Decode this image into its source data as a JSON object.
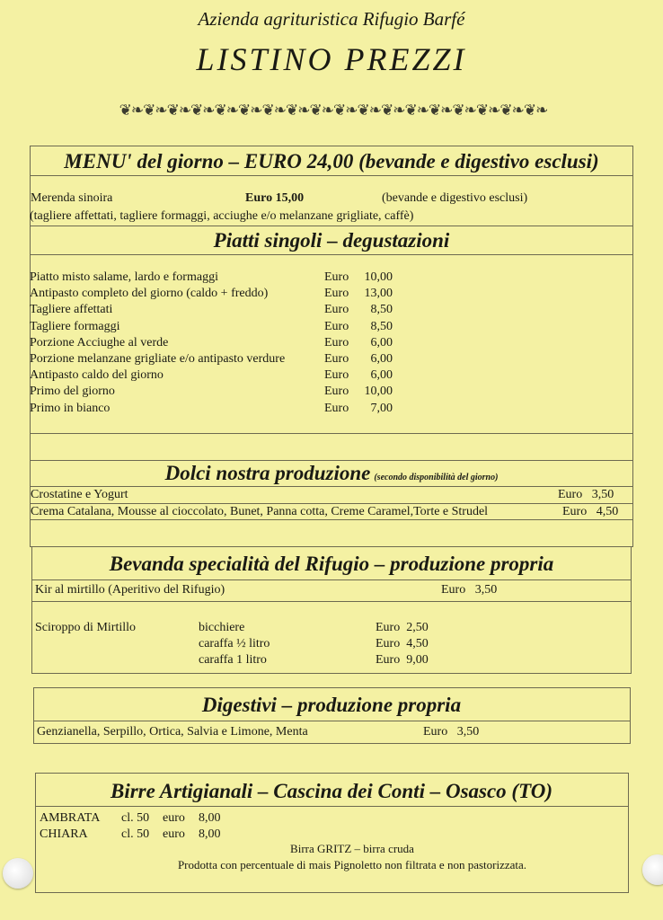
{
  "header": {
    "subtitle": "Azienda agrituristica Rifugio Barfé",
    "title": "LISTINO PREZZI",
    "ornament": "❦❧❦❧❦❧❦❧❦❧❦❧❦❧❦❧❦❧❦❧❦❧❦❧❦❧❦❧❦❧❦❧❦❧❦❧"
  },
  "menu_giorno": {
    "heading": "MENU' del giorno – EURO 24,00 (bevande e digestivo esclusi)",
    "merenda_label": "Merenda sinoira",
    "merenda_price": "Euro 15,00",
    "merenda_note": "(bevande e digestivo esclusi)",
    "merenda_desc": "(tagliere affettati, tagliere formaggi, acciughe e/o melanzane grigliate, caffè)"
  },
  "piatti": {
    "heading": "Piatti singoli – degustazioni",
    "items": [
      {
        "name": "Piatto misto salame, lardo e formaggi",
        "currency": "Euro",
        "price": "10,00"
      },
      {
        "name": "Antipasto completo del giorno (caldo + freddo)",
        "currency": "Euro",
        "price": "13,00"
      },
      {
        "name": "Tagliere affettati",
        "currency": "Euro",
        "price": "8,50"
      },
      {
        "name": "Tagliere formaggi",
        "currency": "Euro",
        "price": "8,50"
      },
      {
        "name": "Porzione Acciughe al verde",
        "currency": "Euro",
        "price": "6,00"
      },
      {
        "name": "Porzione melanzane grigliate e/o antipasto verdure",
        "currency": "Euro",
        "price": "6,00"
      },
      {
        "name": "Antipasto caldo del giorno",
        "currency": "Euro",
        "price": "6,00"
      },
      {
        "name": "Primo del giorno",
        "currency": "Euro",
        "price": "10,00"
      },
      {
        "name": "Primo in bianco",
        "currency": "Euro",
        "price": "7,00"
      }
    ]
  },
  "dolci": {
    "heading": "Dolci nostra produzione",
    "note": "(secondo disponibilità del giorno)",
    "items": [
      {
        "name": "Crostatine e  Yogurt",
        "price": "Euro   3,50"
      },
      {
        "name": "Crema Catalana, Mousse al cioccolato, Bunet, Panna cotta, Creme Caramel,Torte e Strudel",
        "price": "Euro   4,50"
      }
    ]
  },
  "bevanda": {
    "heading": "Bevanda specialità del Rifugio – produzione propria",
    "kir_name": "Kir al mirtillo (Aperitivo del Rifugio)",
    "kir_price": "Euro   3,50",
    "sciroppo_name": "Sciroppo di Mirtillo",
    "sciroppo_sizes": [
      {
        "size": "bicchiere",
        "price": "Euro  2,50"
      },
      {
        "size": "caraffa ½ litro",
        "price": "Euro  4,50"
      },
      {
        "size": "caraffa 1 litro",
        "price": "Euro  9,00"
      }
    ]
  },
  "digestivi": {
    "heading": "Digestivi – produzione propria",
    "name": "Genzianella, Serpillo, Ortica, Salvia e Limone, Menta",
    "price": "Euro   3,50"
  },
  "birre": {
    "heading": "Birre Artigianali – Cascina dei Conti – Osasco (TO)",
    "items": [
      {
        "name": "AMBRATA",
        "size": "cl. 50",
        "currency": "euro",
        "price": "8,00"
      },
      {
        "name": "CHIARA",
        "size": "cl. 50",
        "currency": "euro",
        "price": "8,00"
      }
    ],
    "gritz_title": "Birra GRITZ – birra cruda",
    "gritz_desc": "Prodotta con percentuale di mais Pignoletto non filtrata e non pastorizzata."
  },
  "colors": {
    "paper": "#f4f1a3",
    "ink": "#1a1a14",
    "rule": "#6d6a50"
  }
}
